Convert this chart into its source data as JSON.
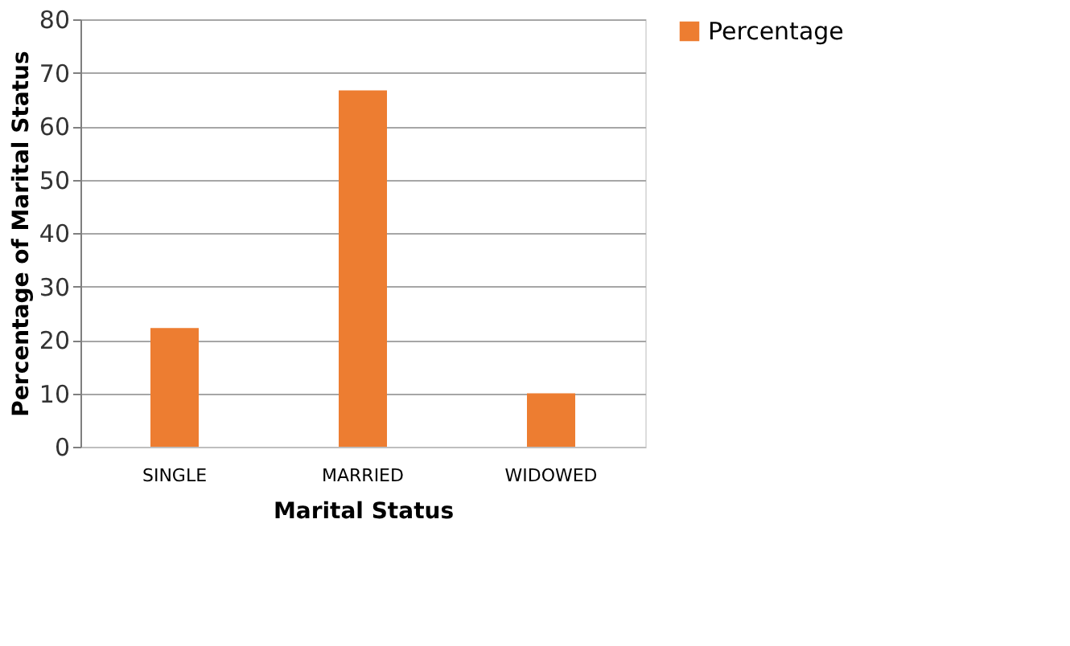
{
  "chart_data": {
    "type": "bar",
    "xlabel": "Marital Status",
    "ylabel": "Percentage of Marital Status",
    "categories": [
      "SINGLE",
      "MARRIED",
      "WIDOWED"
    ],
    "series": [
      {
        "name": "Percentage",
        "color": "#ed7d31",
        "values": [
          22.2,
          66.7,
          10
        ]
      }
    ],
    "ylim": [
      0,
      80
    ],
    "yticks": [
      0,
      10,
      20,
      30,
      40,
      50,
      60,
      70,
      80
    ],
    "grid": "y",
    "legend": "right"
  }
}
